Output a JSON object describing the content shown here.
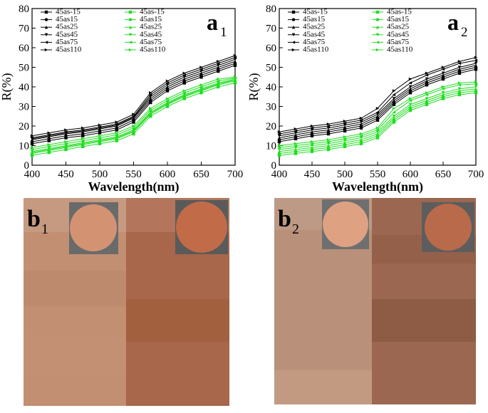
{
  "chart_data": [
    {
      "type": "line",
      "panel_label": "a",
      "panel_subscript": "1",
      "x_label": "Wavelength(nm)",
      "y_label": "R(%)",
      "x": [
        400,
        425,
        450,
        475,
        500,
        525,
        550,
        575,
        600,
        625,
        650,
        675,
        700
      ],
      "xlim": [
        400,
        700
      ],
      "xticks": [
        400,
        450,
        500,
        550,
        600,
        650,
        700
      ],
      "ylim": [
        0,
        80
      ],
      "yticks": [
        0,
        10,
        20,
        30,
        40,
        50,
        60,
        70,
        80
      ],
      "series": [
        {
          "name": "45as-15",
          "color": "#000000",
          "values": [
            11,
            12.5,
            14,
            15,
            16.5,
            18,
            22,
            32,
            38,
            42,
            45,
            48,
            51
          ]
        },
        {
          "name": "45as15",
          "color": "#000000",
          "values": [
            12,
            13.5,
            15,
            16,
            17.5,
            19,
            23,
            33,
            39,
            43,
            46,
            49,
            52
          ]
        },
        {
          "name": "45as25",
          "color": "#000000",
          "values": [
            13,
            14.5,
            16,
            17,
            18.5,
            20,
            24,
            34,
            40,
            44,
            47,
            50,
            53
          ]
        },
        {
          "name": "45as45",
          "color": "#000000",
          "values": [
            13.5,
            15,
            16.5,
            17.5,
            19,
            20.5,
            24.5,
            35,
            41,
            45,
            48,
            51,
            54
          ]
        },
        {
          "name": "45as75",
          "color": "#000000",
          "values": [
            14,
            15.5,
            17,
            18,
            19.5,
            21,
            25,
            36,
            42,
            46,
            49,
            52,
            55
          ]
        },
        {
          "name": "45as110",
          "color": "#000000",
          "values": [
            15,
            16.5,
            18,
            19,
            20.5,
            22,
            26,
            37,
            43,
            47,
            50,
            53,
            56
          ]
        },
        {
          "name": "45as-15",
          "color": "#22dd22",
          "values": [
            5,
            6.5,
            8,
            9.5,
            11,
            12.5,
            16,
            25,
            30,
            34,
            37,
            40,
            42
          ]
        },
        {
          "name": "45as15",
          "color": "#22dd22",
          "values": [
            6,
            7.5,
            9,
            10.5,
            12,
            13.5,
            17,
            26,
            31,
            35,
            38,
            41,
            43
          ]
        },
        {
          "name": "45as25",
          "color": "#22dd22",
          "values": [
            6.5,
            8,
            9.5,
            11,
            12.5,
            14,
            17.5,
            26.5,
            31.5,
            35.5,
            38.5,
            41.5,
            43.5
          ]
        },
        {
          "name": "45as45",
          "color": "#22dd22",
          "values": [
            7,
            8.5,
            10,
            11.5,
            13,
            14.5,
            18,
            27,
            32,
            36,
            39,
            42,
            44
          ]
        },
        {
          "name": "45as75",
          "color": "#22dd22",
          "values": [
            8,
            9.5,
            11,
            12.5,
            14,
            15.5,
            19,
            28,
            33,
            37,
            40,
            43,
            44.5
          ]
        },
        {
          "name": "45as110",
          "color": "#22dd22",
          "values": [
            9,
            10.5,
            12,
            13.5,
            15,
            16.5,
            20,
            29,
            34,
            38,
            41,
            44,
            45
          ]
        }
      ]
    },
    {
      "type": "line",
      "panel_label": "a",
      "panel_subscript": "2",
      "x_label": "Wavelength(nm)",
      "y_label": "R(%)",
      "x": [
        400,
        425,
        450,
        475,
        500,
        525,
        550,
        575,
        600,
        625,
        650,
        675,
        700
      ],
      "xlim": [
        400,
        700
      ],
      "xticks": [
        400,
        450,
        500,
        550,
        600,
        650,
        700
      ],
      "ylim": [
        0,
        80
      ],
      "yticks": [
        0,
        10,
        20,
        30,
        40,
        50,
        60,
        70,
        80
      ],
      "series": [
        {
          "name": "45as-15",
          "color": "#000000",
          "values": [
            12,
            13.5,
            15,
            16,
            17.5,
            19,
            23,
            31,
            37,
            41,
            44,
            47,
            49
          ]
        },
        {
          "name": "45as15",
          "color": "#000000",
          "values": [
            13,
            14.5,
            16,
            17,
            18.5,
            20,
            24,
            32,
            38,
            42,
            45,
            48,
            50
          ]
        },
        {
          "name": "45as25",
          "color": "#000000",
          "values": [
            14,
            15.5,
            17,
            18,
            19.5,
            21,
            25,
            33,
            39,
            43,
            46,
            49,
            51
          ]
        },
        {
          "name": "45as45",
          "color": "#000000",
          "values": [
            15,
            16.5,
            18,
            19,
            20.5,
            22,
            26,
            34,
            40,
            44,
            47,
            50,
            52
          ]
        },
        {
          "name": "45as75",
          "color": "#000000",
          "values": [
            16,
            17.5,
            19,
            20,
            21.5,
            23,
            27,
            36,
            42,
            46,
            49,
            52,
            53.5
          ]
        },
        {
          "name": "45as110",
          "color": "#000000",
          "values": [
            17,
            18.5,
            20,
            21,
            22.5,
            24,
            29,
            38,
            44,
            47,
            50,
            53,
            55
          ]
        },
        {
          "name": "45as-15",
          "color": "#22dd22",
          "values": [
            5,
            6,
            7,
            8,
            9.5,
            11,
            14,
            22,
            28,
            31,
            34,
            36,
            37
          ]
        },
        {
          "name": "45as15",
          "color": "#22dd22",
          "values": [
            6,
            7,
            8,
            9,
            10.5,
            12,
            15,
            23,
            29,
            32,
            35,
            37,
            38
          ]
        },
        {
          "name": "45as25",
          "color": "#22dd22",
          "values": [
            7,
            8,
            9,
            10,
            11.5,
            13,
            16,
            24,
            30,
            33,
            36,
            38,
            39
          ]
        },
        {
          "name": "45as45",
          "color": "#22dd22",
          "values": [
            8,
            9,
            10,
            11,
            12.5,
            14,
            17,
            25,
            31,
            34,
            37,
            39,
            40
          ]
        },
        {
          "name": "45as75",
          "color": "#22dd22",
          "values": [
            9,
            10,
            11,
            12,
            13.5,
            15,
            18,
            27,
            33,
            36,
            39,
            41,
            41.5
          ]
        },
        {
          "name": "45as110",
          "color": "#22dd22",
          "values": [
            10,
            11,
            12,
            13,
            14.5,
            16,
            19,
            29,
            34,
            37,
            40,
            42,
            42.5
          ]
        }
      ]
    }
  ],
  "photo_panels": [
    {
      "label": "b",
      "subscript": "1"
    },
    {
      "label": "b",
      "subscript": "2"
    }
  ]
}
